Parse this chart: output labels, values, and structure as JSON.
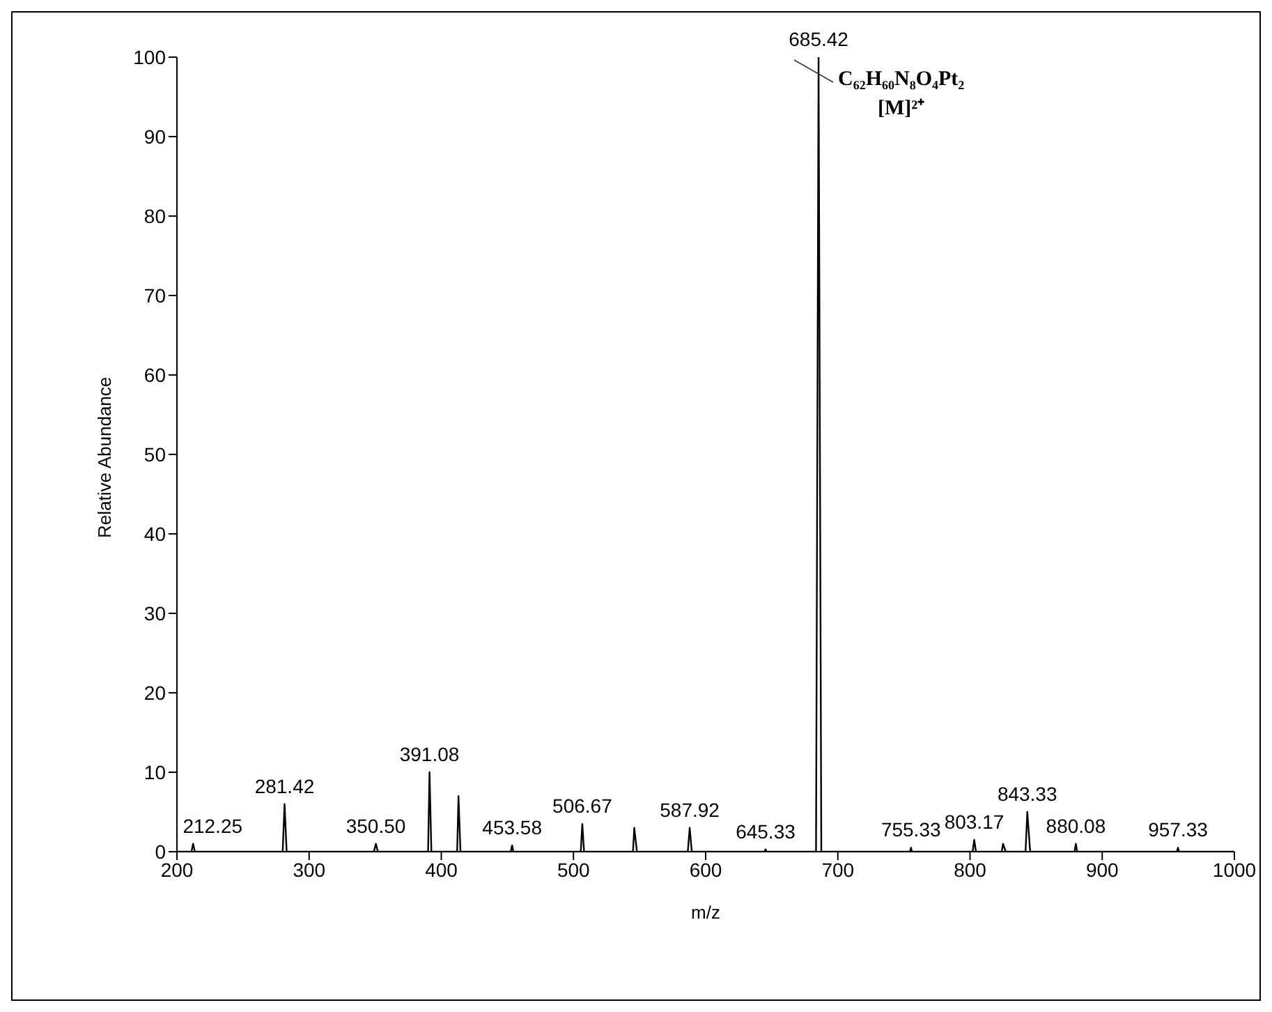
{
  "chart_data": {
    "type": "line",
    "xlabel": "m/z",
    "ylabel": "Relative Abundance",
    "xlim": [
      200,
      1000
    ],
    "ylim": [
      0,
      100
    ],
    "xticks": [
      200,
      300,
      400,
      500,
      600,
      700,
      800,
      900,
      1000
    ],
    "yticks": [
      0,
      10,
      20,
      30,
      40,
      50,
      60,
      70,
      80,
      90,
      100
    ],
    "grid": false,
    "legend": false,
    "marker": "none",
    "line_style": "solid",
    "series": [
      {
        "color": "#000000",
        "x": [
          200,
          211,
          212.25,
          213.5,
          280,
          281.42,
          283,
          349,
          350.5,
          352,
          390,
          391.08,
          392.5,
          412,
          413,
          414.5,
          452.5,
          453.58,
          454.5,
          505.5,
          506.67,
          508,
          545,
          546,
          548,
          586.5,
          587.92,
          589.5,
          644.5,
          645.33,
          646,
          683.5,
          685.42,
          687.5,
          754.5,
          755.33,
          756,
          802,
          803.17,
          804.5,
          824,
          825,
          827,
          842,
          843.33,
          845.5,
          879,
          880.08,
          881,
          956.5,
          957.33,
          958,
          1000
        ],
        "values": [
          0,
          0,
          1,
          0,
          0,
          6,
          0,
          0,
          1,
          0,
          0,
          10,
          0,
          0,
          7,
          0,
          0,
          0.8,
          0,
          0,
          3.5,
          0,
          0,
          3,
          0,
          0,
          3,
          0,
          0,
          0.3,
          0,
          0,
          100,
          0,
          0,
          0.5,
          0,
          0,
          1.5,
          0,
          0,
          1,
          0,
          0,
          5,
          0,
          0,
          1,
          0,
          0,
          0.5,
          0,
          0
        ]
      }
    ],
    "annotations": [
      {
        "text": "212.25",
        "x": 212.25,
        "y": 1
      },
      {
        "text": "281.42",
        "x": 281.42,
        "y": 6
      },
      {
        "text": "350.50",
        "x": 350.5,
        "y": 1
      },
      {
        "text": "391.08",
        "x": 391.08,
        "y": 10
      },
      {
        "text": "453.58",
        "x": 453.58,
        "y": 0.8
      },
      {
        "text": "506.67",
        "x": 506.67,
        "y": 3.5
      },
      {
        "text": "587.92",
        "x": 587.92,
        "y": 3
      },
      {
        "text": "645.33",
        "x": 645.33,
        "y": 0.3
      },
      {
        "text": "685.42",
        "x": 685.42,
        "y": 100
      },
      {
        "text": "755.33",
        "x": 755.33,
        "y": 0.5
      },
      {
        "text": "803.17",
        "x": 803.17,
        "y": 1.5
      },
      {
        "text": "843.33",
        "x": 843.33,
        "y": 5
      },
      {
        "text": "880.08",
        "x": 880.08,
        "y": 1
      },
      {
        "text": "957.33",
        "x": 957.33,
        "y": 0.5
      },
      "C₆₂H₆₀N₈O₄Pt₂",
      "[M]²⁺"
    ]
  }
}
